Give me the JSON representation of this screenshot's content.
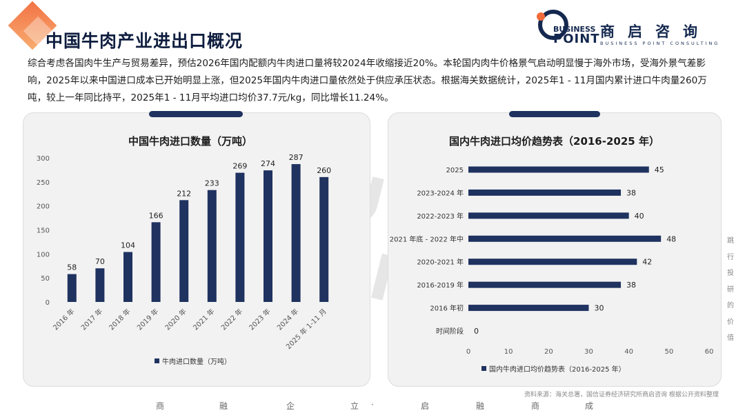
{
  "header": {
    "title": "中国牛肉产业进出口概况",
    "logo_business": "BUSINESS",
    "logo_point": "POINT",
    "logo_cn": "商启咨询",
    "logo_en": "BUSINESS POINT CONSULTING"
  },
  "intro": "综合考虑各国肉牛生产与贸易差异，预估2026年国内配额内牛肉进口量将较2024年收缩接近20%。本轮国内肉牛价格景气启动明显慢于海外市场，受海外景气差影响，2025年以来中国进口成本已开始明显上涨，但2025年国内牛肉进口量依然处于供应承压状态。根据海关数据统计，2025年1 - 11月国内累计进口牛肉量260万吨，较上一年同比持平，2025年1 - 11月平均进口均价37.7元/kg，同比增长11.24%。",
  "colors": {
    "bar": "#1f3260",
    "accent": "#f26b3a"
  },
  "chart_data": [
    {
      "type": "bar",
      "title": "中国牛肉进口数量（万吨）",
      "categories": [
        "2016 年",
        "2017 年",
        "2018 年",
        "2019 年",
        "2020 年",
        "2021 年",
        "2022 年",
        "2023 年",
        "2024 年",
        "2025 年 1-11 月"
      ],
      "series": [
        {
          "name": "牛肉进口数量（万吨）",
          "values": [
            58,
            70,
            104,
            166,
            212,
            233,
            269,
            274,
            287,
            260
          ]
        }
      ],
      "y_ticks": [
        0,
        50,
        100,
        150,
        200,
        250,
        300
      ],
      "ylim": [
        0,
        300
      ],
      "legend": "bottom"
    },
    {
      "type": "bar",
      "orientation": "horizontal",
      "title": "国内牛肉进口均价趋势表（2016-2025 年）",
      "categories": [
        "2025",
        "2023-2024 年",
        "2022-2023 年",
        "2021 年底 - 2022 年中",
        "2020-2021 年",
        "2016-2019 年",
        "2016 年初",
        "时间阶段"
      ],
      "series": [
        {
          "name": "国内牛肉进口均价趋势表（2016-2025 年）",
          "values": [
            45,
            38,
            40,
            48,
            42,
            38,
            30,
            0
          ]
        }
      ],
      "x_ticks": [
        0,
        10,
        20,
        30,
        40,
        50,
        60
      ],
      "xlim": [
        0,
        60
      ],
      "legend": "bottom"
    }
  ],
  "source": "资料来源：海关总署，国信证券经济研究所商启咨询 根据公开资料整理",
  "side_text": [
    "跳",
    "行",
    "投",
    "研",
    "的",
    "价",
    "值"
  ],
  "footer": [
    "商",
    "融",
    "企",
    "立",
    "·",
    "启",
    "融",
    "商",
    "成"
  ],
  "watermark": "BUSINESS POINT"
}
